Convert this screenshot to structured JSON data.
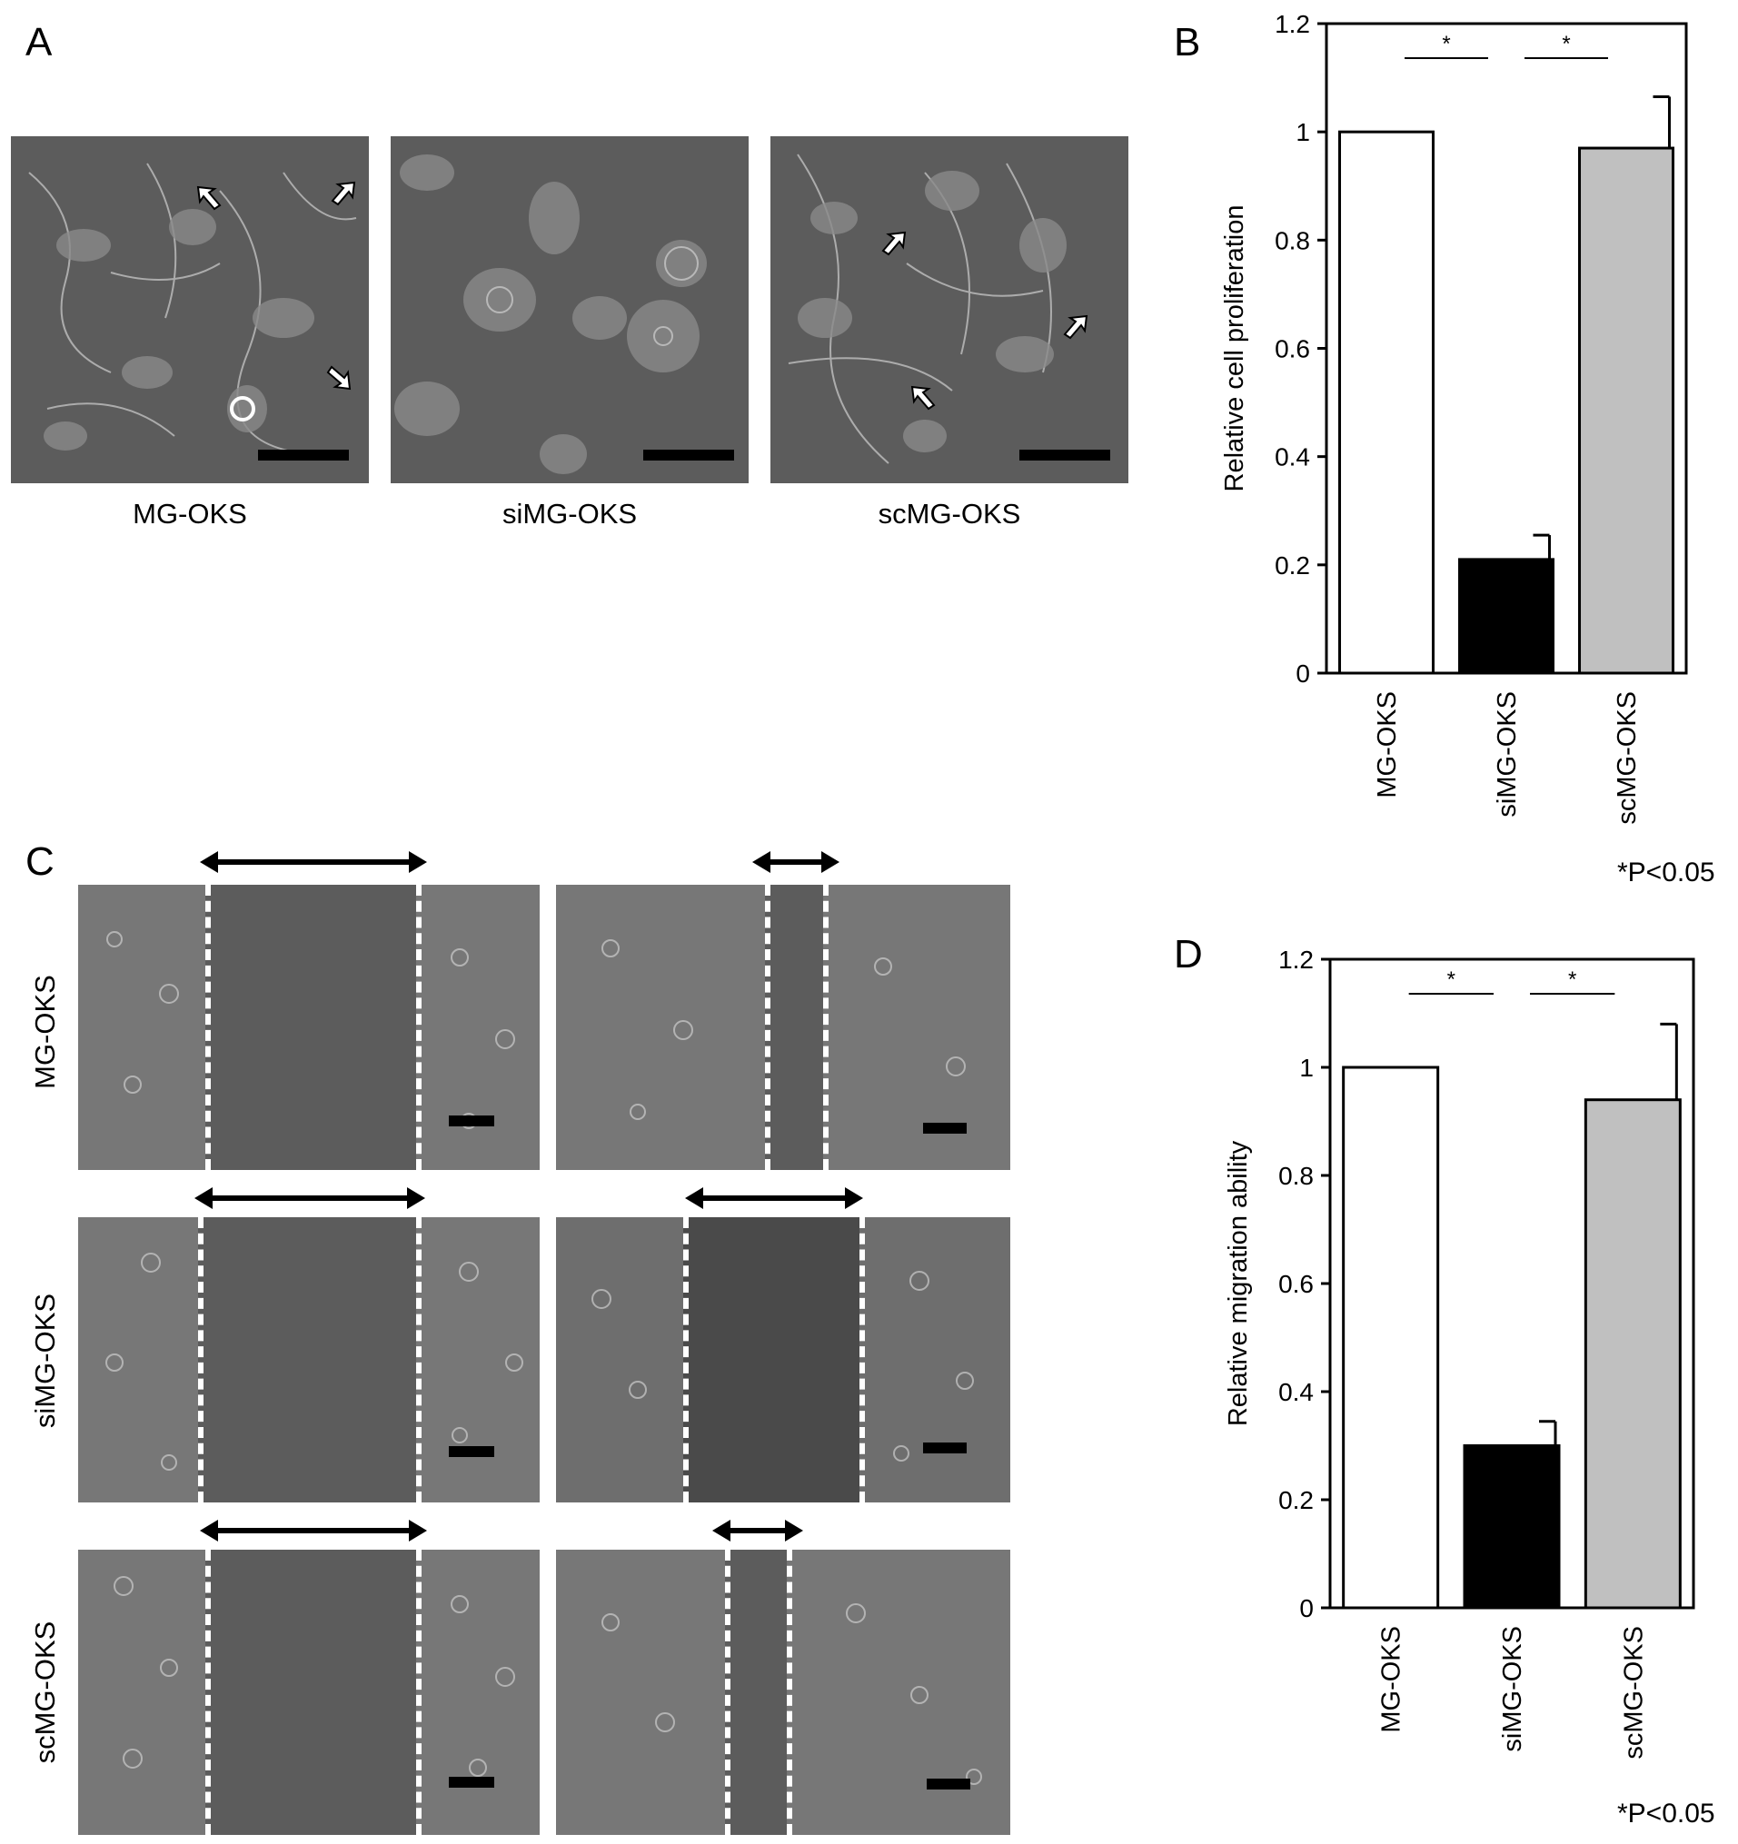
{
  "panels": {
    "a": {
      "letter": "A",
      "images": [
        {
          "caption": "MG-OKS"
        },
        {
          "caption": "siMG-OKS"
        },
        {
          "caption": "scMG-OKS"
        }
      ]
    },
    "b": {
      "letter": "B",
      "note": "*P<0.05"
    },
    "c": {
      "letter": "C",
      "rows": [
        {
          "label": "MG-OKS"
        },
        {
          "label": "siMG-OKS"
        },
        {
          "label": "scMG-OKS"
        }
      ]
    },
    "d": {
      "letter": "D",
      "note": "*P<0.05"
    }
  },
  "colors": {
    "bar_MG-OKS": "#ffffff",
    "bar_siMG-OKS": "#000000",
    "bar_scMG-OKS": "#c0c0c0"
  },
  "chart_data": [
    {
      "type": "bar",
      "panel": "B",
      "categories": [
        "MG-OKS",
        "siMG-OKS",
        "scMG-OKS"
      ],
      "values": [
        1.0,
        0.21,
        0.97
      ],
      "errors": [
        0,
        0.045,
        0.095
      ],
      "ylabel": "Relative cell proliferation",
      "ylim": [
        0,
        1.2
      ],
      "yticks": [
        "0",
        "0.2",
        "0.4",
        "0.6",
        "0.8",
        "1",
        "1.2"
      ],
      "significance": [
        {
          "from": "MG-OKS",
          "to": "siMG-OKS",
          "label": "*"
        },
        {
          "from": "siMG-OKS",
          "to": "scMG-OKS",
          "label": "*"
        }
      ],
      "annotation": "*P<0.05"
    },
    {
      "type": "bar",
      "panel": "D",
      "categories": [
        "MG-OKS",
        "siMG-OKS",
        "scMG-OKS"
      ],
      "values": [
        1.0,
        0.3,
        0.94
      ],
      "errors": [
        0,
        0.045,
        0.14
      ],
      "ylabel": "Relative migration ability",
      "ylim": [
        0,
        1.2
      ],
      "yticks": [
        "0",
        "0.2",
        "0.4",
        "0.6",
        "0.8",
        "1",
        "1.2"
      ],
      "significance": [
        {
          "from": "MG-OKS",
          "to": "siMG-OKS",
          "label": "*"
        },
        {
          "from": "siMG-OKS",
          "to": "scMG-OKS",
          "label": "*"
        }
      ],
      "annotation": "*P<0.05"
    }
  ]
}
